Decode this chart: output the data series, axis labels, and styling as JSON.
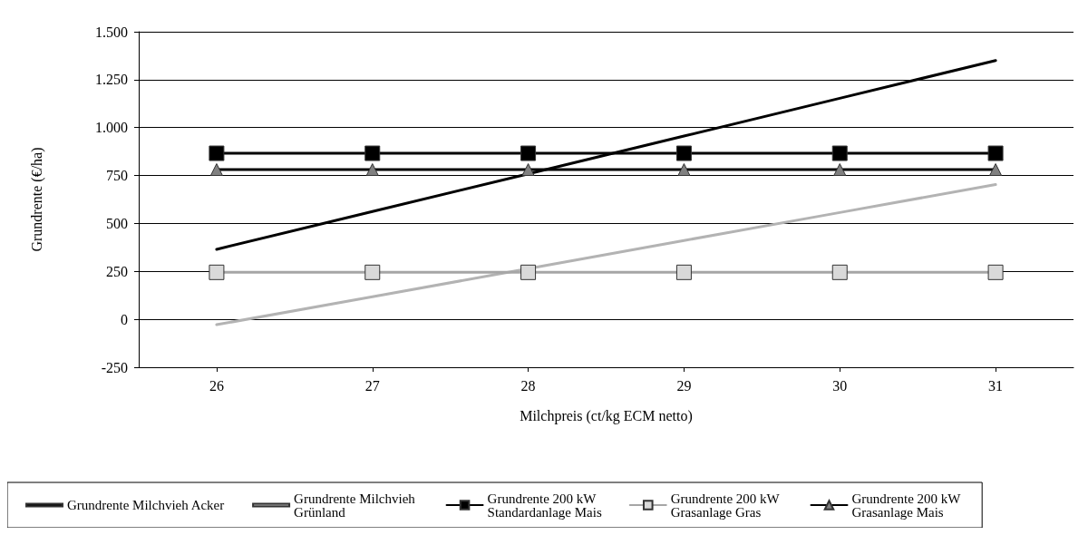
{
  "chart_data": {
    "type": "line",
    "xlabel": "Milchpreis (ct/kg ECM netto)",
    "ylabel": "Grundrente (€/ha)",
    "categories": [
      "26",
      "27",
      "28",
      "29",
      "30",
      "31"
    ],
    "ylim": [
      -250,
      1500
    ],
    "yticks": [
      {
        "value": -250,
        "label": "-250"
      },
      0,
      250,
      500,
      750,
      {
        "value": 1000,
        "label": "1.000"
      },
      {
        "value": 1250,
        "label": "1.250"
      },
      {
        "value": 1500,
        "label": "1.500"
      }
    ],
    "grid": "y",
    "legend": "bottom",
    "series": [
      {
        "name": "Grundrente Milchvieh Acker",
        "color": "#000000",
        "marker": "none",
        "values": [
          365,
          562,
          759,
          956,
          1153,
          1350
        ]
      },
      {
        "name": "Grundrente Milchvieh Grünland",
        "color": "#b3b3b3",
        "marker": "none",
        "values": [
          -28,
          118,
          264,
          411,
          557,
          703
        ]
      },
      {
        "name": "Grundrente 200 kW Standardanlage Mais",
        "color": "#000000",
        "marker": "square",
        "values": [
          866,
          866,
          866,
          866,
          866,
          866
        ]
      },
      {
        "name": "Grundrente 200 kW Grasanlage Gras",
        "color": "#a6a6a6",
        "marker": "square",
        "colors": [
          "#d9d9d9",
          "#d9d9d9",
          "#d9d9d9",
          "#d9d9d9",
          "#d9d9d9",
          "#d9d9d9"
        ],
        "values": [
          245,
          245,
          245,
          245,
          245,
          245
        ]
      },
      {
        "name": "Grundrente 200 kW Grasanlage Mais",
        "color": "#000000",
        "marker": "triangle",
        "colors": [
          "#808080",
          "#808080",
          "#808080",
          "#808080",
          "#808080",
          "#808080"
        ],
        "values": [
          781,
          781,
          781,
          781,
          781,
          781
        ]
      }
    ]
  }
}
